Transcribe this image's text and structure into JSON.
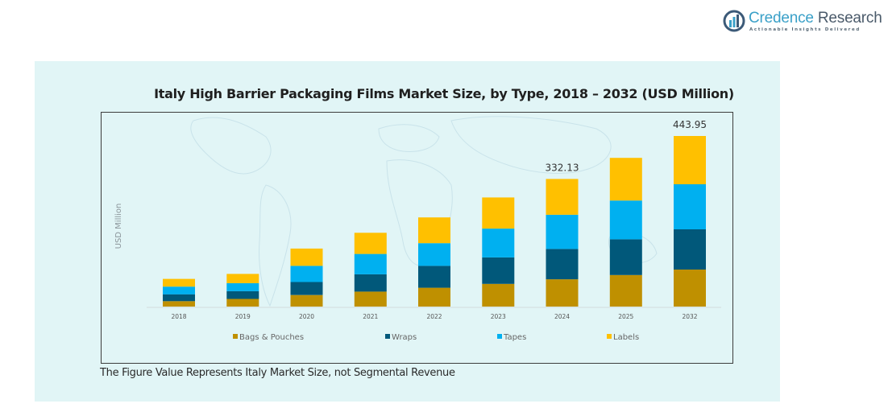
{
  "brand": {
    "name_part1": "Credence",
    "name_part2": " Research",
    "tagline": "Actionable Insights Delivered"
  },
  "footnote": "The Figure Value Represents Italy Market Size, not Segmental Revenue",
  "chart_data": {
    "type": "bar",
    "stacked": true,
    "title": "Italy High Barrier Packaging Films Market Size, by Type, 2018 – 2032 (USD Million)",
    "xlabel": "",
    "ylabel": "USD Million",
    "ylim": [
      0,
      460
    ],
    "grid": false,
    "legend_position": "bottom",
    "categories": [
      "2018",
      "2019",
      "2020",
      "2021",
      "2022",
      "2023",
      "2024",
      "2025",
      "2032"
    ],
    "series": [
      {
        "name": "Bags & Pouches",
        "color": "#bf9000",
        "values": [
          14,
          20,
          30,
          39,
          49,
          59,
          71,
          82,
          96.3
        ]
      },
      {
        "name": "Wraps",
        "color": "#01587a",
        "values": [
          18,
          20,
          34,
          45,
          57,
          69,
          79,
          93,
          104.7
        ]
      },
      {
        "name": "Tapes",
        "color": "#00b0f0",
        "values": [
          20,
          21,
          42,
          53,
          59,
          75,
          89,
          101,
          117.3
        ]
      },
      {
        "name": "Labels",
        "color": "#ffc000",
        "values": [
          20,
          24,
          45,
          55,
          67,
          81,
          93.13,
          111,
          125.65
        ]
      }
    ],
    "annotations": [
      {
        "category": "2024",
        "text": "332.13"
      },
      {
        "category": "2032",
        "text": "443.95"
      }
    ]
  }
}
